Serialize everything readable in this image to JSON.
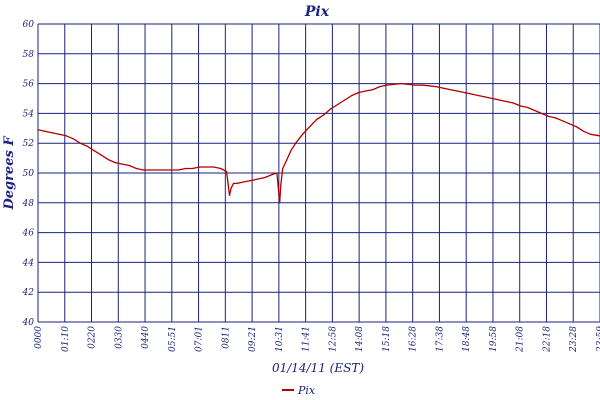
{
  "chart_data": {
    "type": "line",
    "title": "Pix",
    "xlabel": "01/14/11 (EST)",
    "ylabel": "Degrees F",
    "ylim": [
      40,
      60
    ],
    "y_ticks": [
      "40",
      "42",
      "44",
      "46",
      "48",
      "50",
      "52",
      "54",
      "56",
      "58",
      "60"
    ],
    "x_ticks": [
      "0000",
      "01:10",
      "0220",
      "0330",
      "0440",
      "05:51",
      "07:01",
      "0811",
      "09:21",
      "10:31",
      "11:41",
      "12:58",
      "14:08",
      "15:18",
      "16:28",
      "17:38",
      "18:48",
      "19:58",
      "21:08",
      "22:18",
      "23:28",
      "23:59"
    ],
    "grid": true,
    "legend_position": "bottom-center",
    "colors": {
      "series": "#b00000",
      "grid": "#1a237e",
      "text": "#1a237e"
    },
    "series": [
      {
        "name": "Pix",
        "x": [
          0,
          0.3,
          0.6,
          0.9,
          1.2,
          1.5,
          1.8,
          2.1,
          2.4,
          2.7,
          3.0,
          3.3,
          3.6,
          3.9,
          4.2,
          4.5,
          4.8,
          5.1,
          5.4,
          5.7,
          6.0,
          6.3,
          6.6,
          6.9,
          7.2,
          7.5,
          7.8,
          8.05,
          8.1,
          8.18,
          8.25,
          8.35,
          8.5,
          8.8,
          9.1,
          9.4,
          9.7,
          10.0,
          10.2,
          10.32,
          10.37,
          10.45,
          10.6,
          10.8,
          11.0,
          11.3,
          11.6,
          11.9,
          12.2,
          12.5,
          12.8,
          13.1,
          13.4,
          13.7,
          14.0,
          14.3,
          14.6,
          14.9,
          15.2,
          15.5,
          15.8,
          16.1,
          16.4,
          16.7,
          17.0,
          17.3,
          17.6,
          17.9,
          18.2,
          18.5,
          18.8,
          19.1,
          19.4,
          19.7,
          20.0,
          20.3,
          20.6,
          20.9,
          21.2,
          21.5,
          21.8,
          22.1,
          22.4,
          22.7,
          23.0,
          23.3,
          23.6,
          23.98
        ],
        "values": [
          52.9,
          52.8,
          52.7,
          52.6,
          52.5,
          52.3,
          52.0,
          51.8,
          51.5,
          51.2,
          50.9,
          50.7,
          50.6,
          50.5,
          50.3,
          50.2,
          50.2,
          50.2,
          50.2,
          50.2,
          50.2,
          50.3,
          50.3,
          50.4,
          50.4,
          50.4,
          50.3,
          50.1,
          49.5,
          48.5,
          49.0,
          49.3,
          49.3,
          49.4,
          49.5,
          49.6,
          49.7,
          49.9,
          50.0,
          48.0,
          49.2,
          50.3,
          50.8,
          51.5,
          52.0,
          52.6,
          53.1,
          53.6,
          53.9,
          54.3,
          54.6,
          54.9,
          55.2,
          55.4,
          55.5,
          55.6,
          55.8,
          55.9,
          55.95,
          56.0,
          55.95,
          55.9,
          55.9,
          55.85,
          55.8,
          55.7,
          55.6,
          55.5,
          55.4,
          55.3,
          55.2,
          55.1,
          55.0,
          54.9,
          54.8,
          54.7,
          54.5,
          54.4,
          54.2,
          54.0,
          53.8,
          53.7,
          53.5,
          53.3,
          53.1,
          52.8,
          52.6,
          52.5
        ]
      }
    ]
  }
}
